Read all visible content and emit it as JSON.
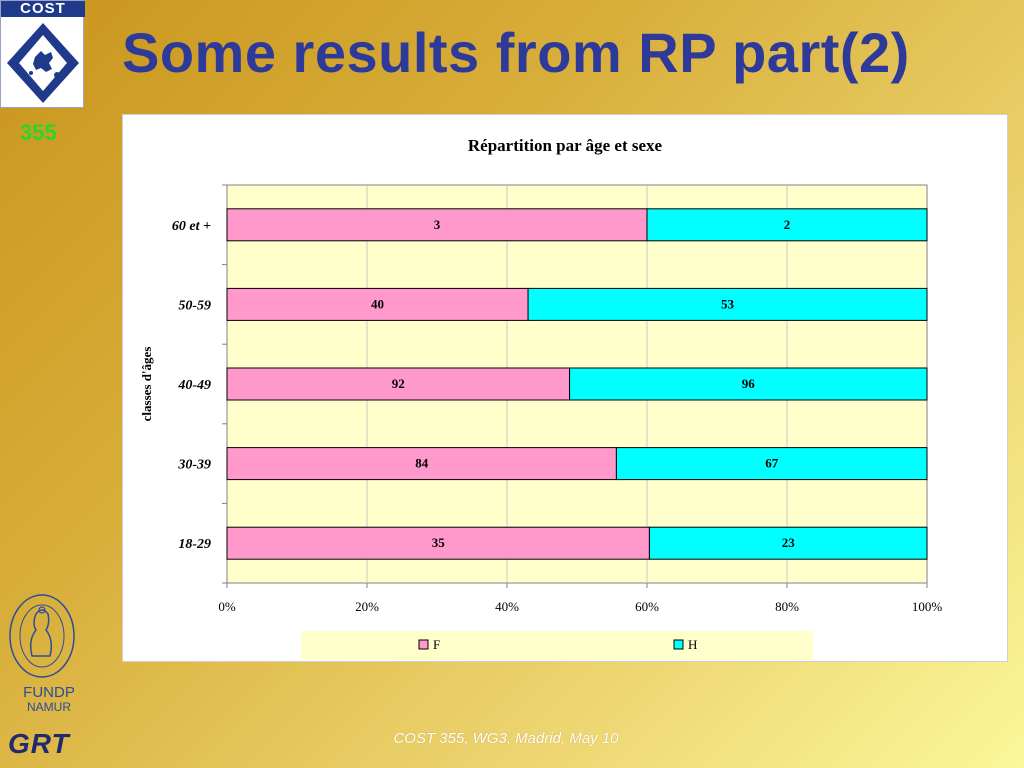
{
  "slide": {
    "title": "Some results from RP part(2)",
    "action_number": "355",
    "footer": "COST 355, WG3, Madrid, May 10"
  },
  "logos": {
    "cost_text": "COST",
    "fundp_line1": "FUNDP",
    "fundp_line2": "NAMUR",
    "fundp_seal_text": "FACULTES UNIVERSITAIRES NOTRE-DAME DE LA PAIX",
    "grt_text": "GRT"
  },
  "colors": {
    "title": "#2e3a9a",
    "action_number": "#2bd62b",
    "plot_background": "#ffffcc",
    "F": "#ff99cc",
    "H": "#00ffff"
  },
  "chart_data": {
    "type": "bar",
    "orientation": "horizontal",
    "stacked": "percent",
    "title": "Répartition par âge et sexe",
    "ylabel": "classes d'âges",
    "xlabel": "",
    "categories": [
      "60 et +",
      "50-59",
      "40-49",
      "30-39",
      "18-29"
    ],
    "series": [
      {
        "name": "F",
        "values": [
          3,
          40,
          92,
          84,
          35
        ]
      },
      {
        "name": "H",
        "values": [
          2,
          53,
          96,
          67,
          23
        ]
      }
    ],
    "xlim": [
      0,
      100
    ],
    "x_ticks": [
      "0%",
      "20%",
      "40%",
      "60%",
      "80%",
      "100%"
    ],
    "grid": true,
    "legend_position": "bottom"
  }
}
